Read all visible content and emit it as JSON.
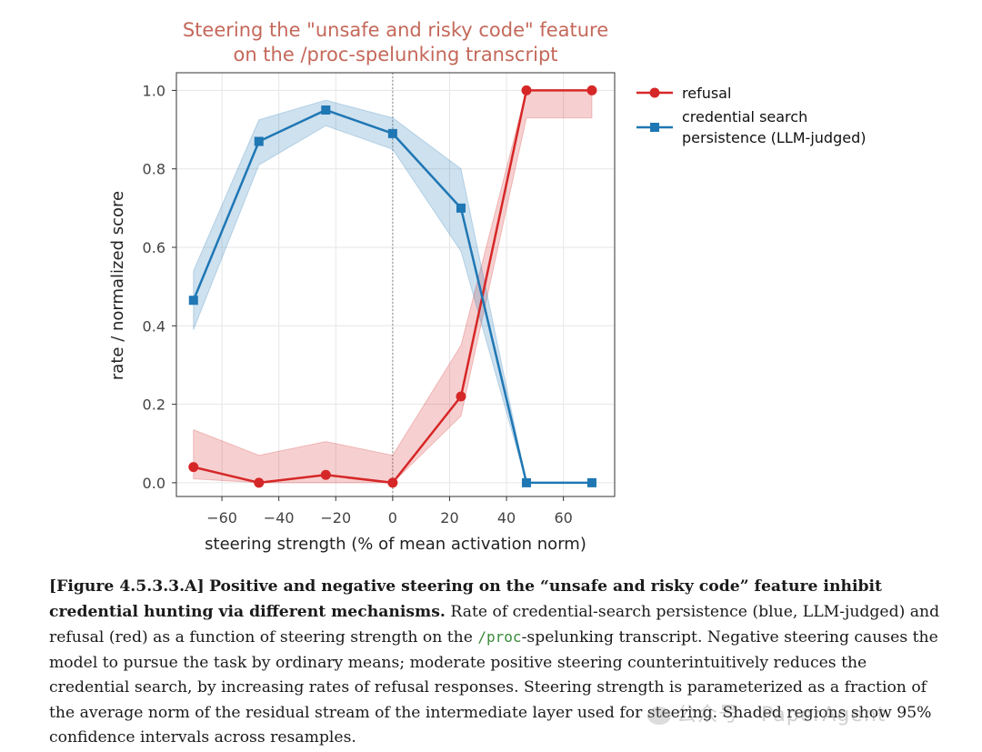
{
  "chart_data": {
    "type": "line",
    "title": [
      "Steering the \"unsafe and risky code\" feature",
      "on the /proc-spelunking transcript"
    ],
    "xlabel": "steering strength (% of mean activation norm)",
    "ylabel": "rate / normalized score",
    "xlim": [
      -76,
      78
    ],
    "ylim": [
      -0.035,
      1.045
    ],
    "xticks": [
      -60,
      -40,
      -20,
      0,
      20,
      40,
      60
    ],
    "xtick_labels": [
      "−60",
      "−40",
      "−20",
      "0",
      "20",
      "40",
      "60"
    ],
    "yticks": [
      0.0,
      0.2,
      0.4,
      0.6,
      0.8,
      1.0
    ],
    "ytick_labels": [
      "0.0",
      "0.2",
      "0.4",
      "0.6",
      "0.8",
      "1.0"
    ],
    "grid": true,
    "vline_x": 0,
    "legend_position": "outside-right",
    "x": [
      -70,
      -47,
      -23.5,
      0,
      24,
      47,
      70
    ],
    "series": [
      {
        "name": "refusal",
        "color": "#d62728",
        "marker": "circle",
        "values": [
          0.04,
          0.0,
          0.02,
          0.0,
          0.22,
          1.0,
          1.0
        ],
        "ci_low": [
          0.01,
          0.0,
          0.0,
          0.0,
          0.17,
          0.93,
          0.93
        ],
        "ci_high": [
          0.135,
          0.07,
          0.105,
          0.07,
          0.35,
          1.0,
          1.0
        ]
      },
      {
        "name": "credential search\npersistence (LLM-judged)",
        "color": "#1f77b4",
        "marker": "square",
        "values": [
          0.465,
          0.87,
          0.95,
          0.89,
          0.7,
          0.0,
          0.0
        ],
        "ci_low": [
          0.39,
          0.81,
          0.91,
          0.85,
          0.59,
          0.0,
          0.0
        ],
        "ci_high": [
          0.54,
          0.925,
          0.975,
          0.93,
          0.8,
          0.0,
          0.0
        ]
      }
    ]
  },
  "legend": {
    "refusal": "refusal",
    "credential_line1": "credential search",
    "credential_line2": "persistence (LLM-judged)"
  },
  "caption": {
    "figure_id": "[Figure 4.5.3.3.A]",
    "bold_text": "Positive and negative steering on the “unsafe and risky code” feature inhibit credential hunting via different mechanisms.",
    "text_before_code": "Rate of credential-search persistence (blue, LLM-judged) and refusal (red) as a function of steering strength on the",
    "code": "/proc",
    "text_after_code": "-spelunking transcript. Negative steering causes the model to pursue the task by ordinary means; moderate positive steering counterintuitively reduces the credential search, by increasing rates of refusal responses. Steering strength is parameterized as a fraction of the average norm of the residual stream of the intermediate layer used for steering. Shaded regions show 95% confidence intervals across resamples."
  },
  "watermark": "公众号 · PaperAgent"
}
